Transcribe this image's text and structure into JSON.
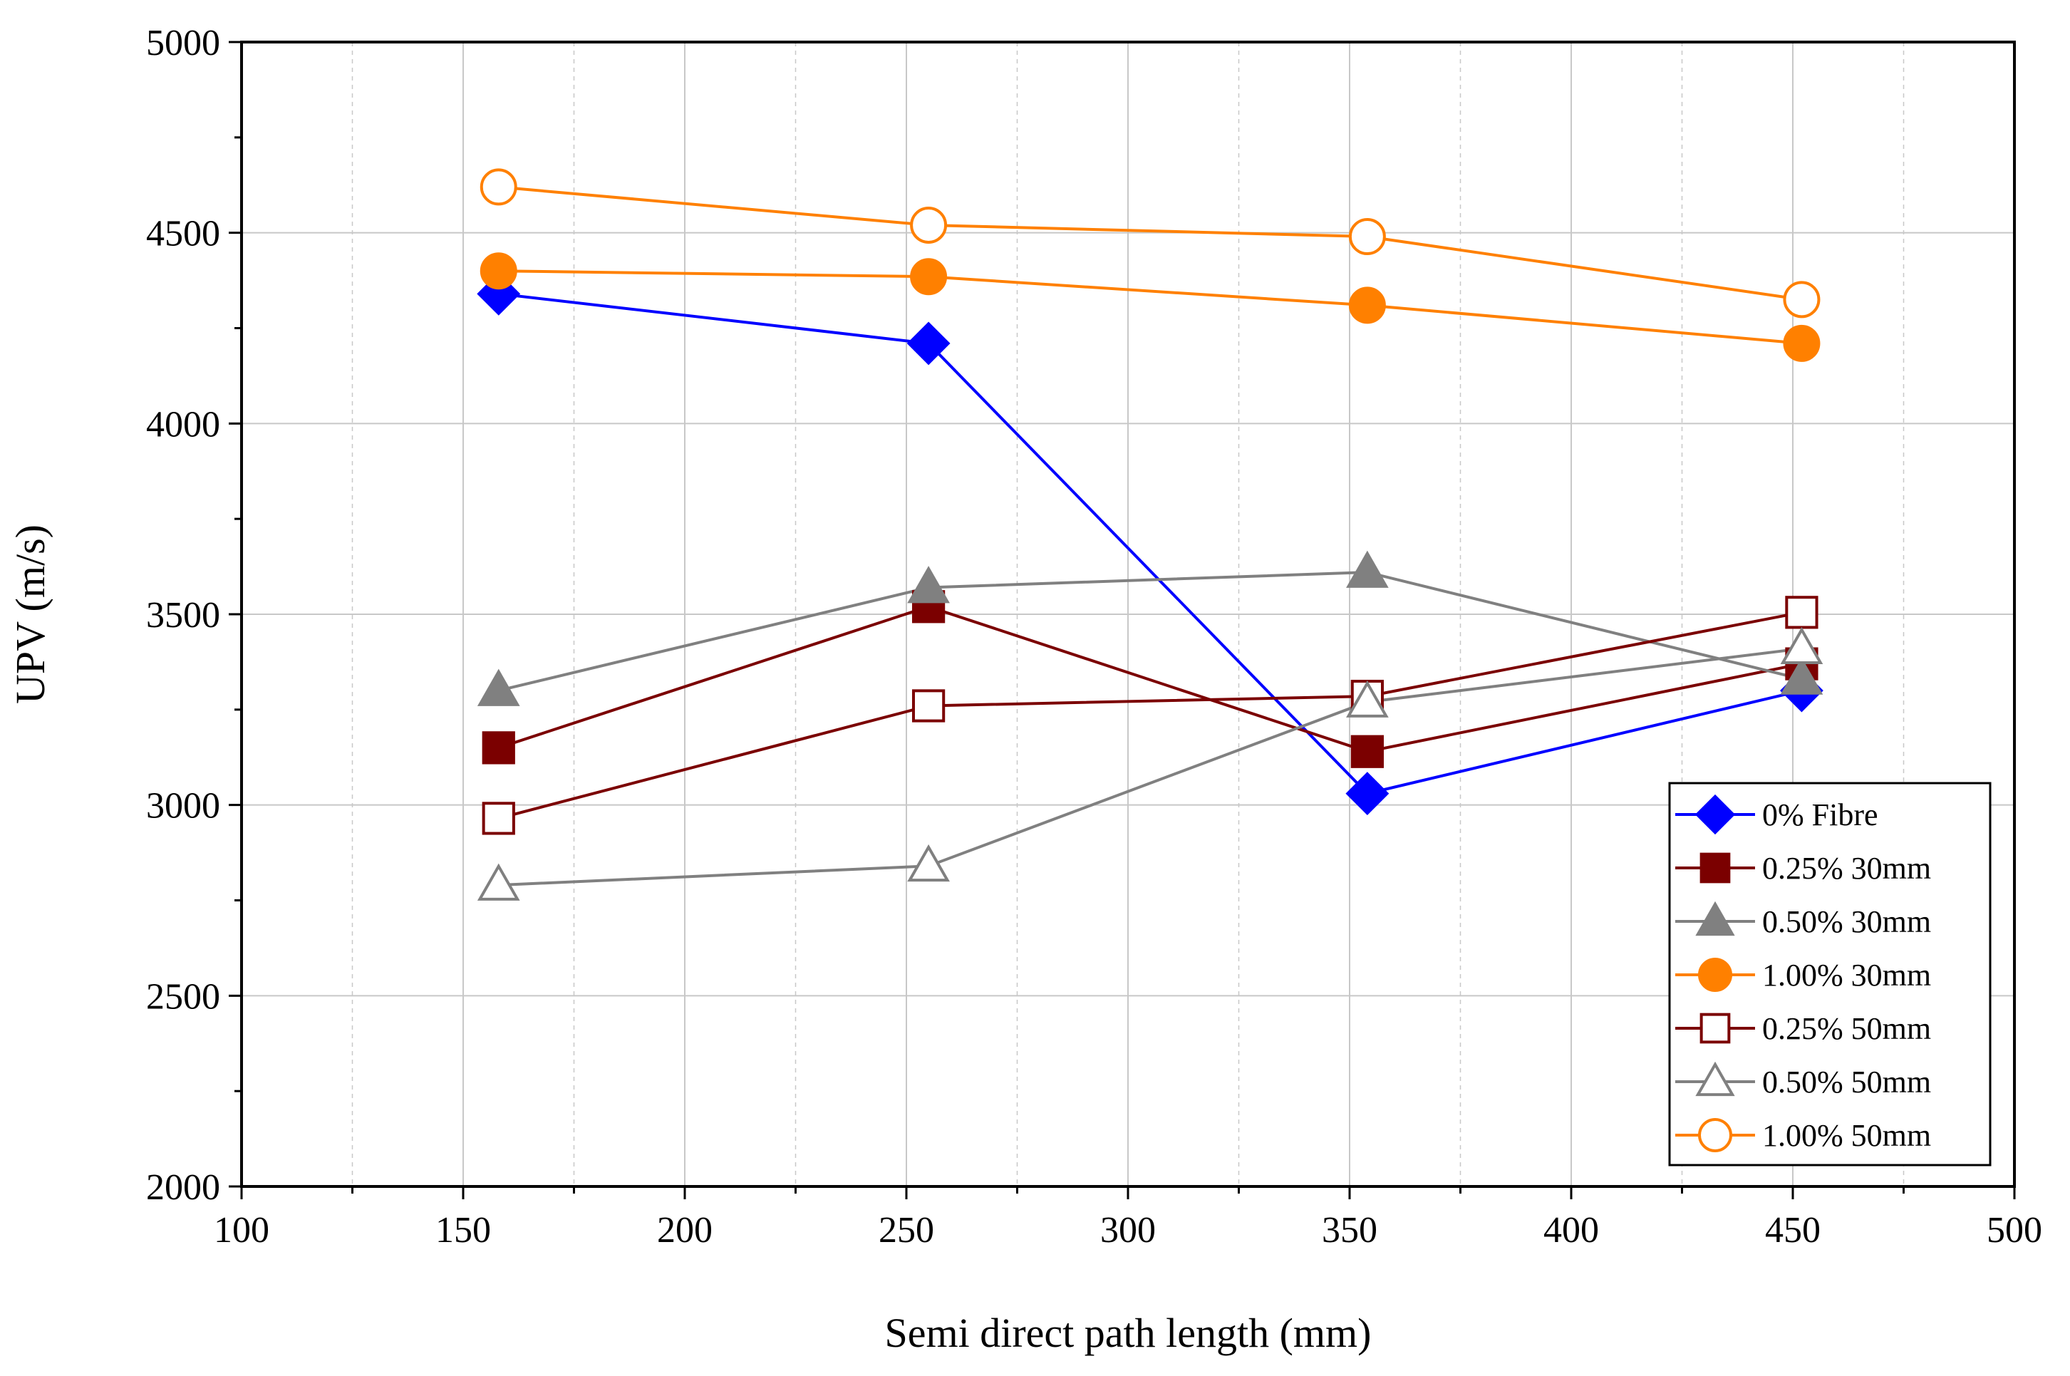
{
  "chart_data": {
    "type": "line",
    "title": "",
    "xlabel": "Semi direct path length (mm)",
    "ylabel": "UPV (m/s)",
    "xlim": [
      100,
      500
    ],
    "ylim": [
      2000,
      5000
    ],
    "x_ticks": [
      100,
      150,
      200,
      250,
      300,
      350,
      400,
      450,
      500
    ],
    "y_ticks": [
      2000,
      2500,
      3000,
      3500,
      4000,
      4500,
      5000
    ],
    "x_ticks_label": [
      "100",
      "150",
      "200",
      "250",
      "300",
      "350",
      "400",
      "450",
      "500"
    ],
    "y_ticks_label": [
      "2000",
      "2500",
      "3000",
      "3500",
      "4000",
      "4500",
      "5000"
    ],
    "grid": true,
    "legend_position": "bottom-right",
    "x": [
      158,
      255,
      354,
      452
    ],
    "series": [
      {
        "name": "0% Fibre",
        "values": [
          4340,
          4210,
          3030,
          3300
        ],
        "color": "#0000ff",
        "marker": "diamond",
        "filled": true
      },
      {
        "name": "0.25% 30mm",
        "values": [
          3150,
          3520,
          3140,
          3370
        ],
        "color": "#7b0000",
        "marker": "square",
        "filled": true
      },
      {
        "name": "0.50% 30mm",
        "values": [
          3300,
          3570,
          3610,
          3330
        ],
        "color": "#808080",
        "marker": "triangle",
        "filled": true
      },
      {
        "name": "1.00% 30mm",
        "values": [
          4400,
          4385,
          4310,
          4210
        ],
        "color": "#ff8000",
        "marker": "circle",
        "filled": true
      },
      {
        "name": "0.25% 50mm",
        "values": [
          2965,
          3260,
          3285,
          3505
        ],
        "color": "#7b0000",
        "marker": "square",
        "filled": false
      },
      {
        "name": "0.50% 50mm",
        "values": [
          2790,
          2840,
          3270,
          3410
        ],
        "color": "#808080",
        "marker": "triangle",
        "filled": false
      },
      {
        "name": "1.00% 50mm",
        "values": [
          4620,
          4520,
          4490,
          4325
        ],
        "color": "#ff8000",
        "marker": "circle",
        "filled": false
      }
    ]
  }
}
